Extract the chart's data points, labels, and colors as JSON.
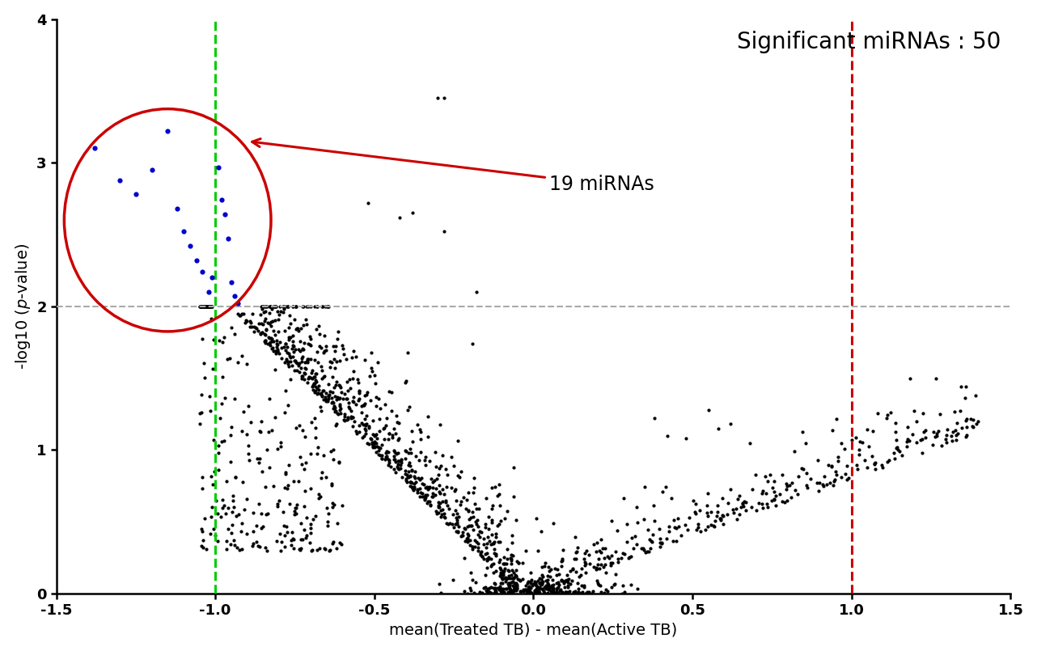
{
  "title": "",
  "xlabel": "mean(Treated TB) - mean(Active TB)",
  "ylabel": "-log10 ($p$-value)",
  "xlim": [
    -1.5,
    1.5
  ],
  "ylim": [
    0,
    4
  ],
  "xticks": [
    -1.5,
    -1.0,
    -0.5,
    0.0,
    0.5,
    1.0,
    1.5
  ],
  "yticks": [
    0,
    1,
    2,
    3,
    4
  ],
  "vline_green": -1.0,
  "vline_red": 1.0,
  "hline_gray": 2.0,
  "annotation_text": "Significant miRNAs : 50",
  "circle_label": "19 miRNAs",
  "blue_points": [
    [
      -1.38,
      3.1
    ],
    [
      -1.3,
      2.88
    ],
    [
      -1.25,
      2.78
    ],
    [
      -1.2,
      2.95
    ],
    [
      -1.15,
      3.22
    ],
    [
      -1.12,
      2.68
    ],
    [
      -1.1,
      2.52
    ],
    [
      -1.08,
      2.42
    ],
    [
      -1.06,
      2.32
    ],
    [
      -1.04,
      2.24
    ],
    [
      -1.02,
      2.1
    ],
    [
      -1.01,
      2.2
    ],
    [
      -0.99,
      2.97
    ],
    [
      -0.98,
      2.74
    ],
    [
      -0.97,
      2.64
    ],
    [
      -0.96,
      2.47
    ],
    [
      -0.95,
      2.17
    ],
    [
      -0.94,
      2.07
    ],
    [
      -0.93,
      2.02
    ]
  ],
  "black_scatter_seed": 123,
  "dot_color_black": "#000000",
  "dot_color_blue": "#0000cc",
  "line_color_green": "#00cc00",
  "line_color_red": "#cc0000",
  "line_color_gray": "#aaaaaa",
  "ellipse_color": "#cc0000",
  "arrow_color": "#cc0000",
  "bg_color": "#ffffff",
  "fontsize_label": 14,
  "fontsize_annot": 20,
  "fontsize_circle_label": 17,
  "fontsize_ticks": 13
}
